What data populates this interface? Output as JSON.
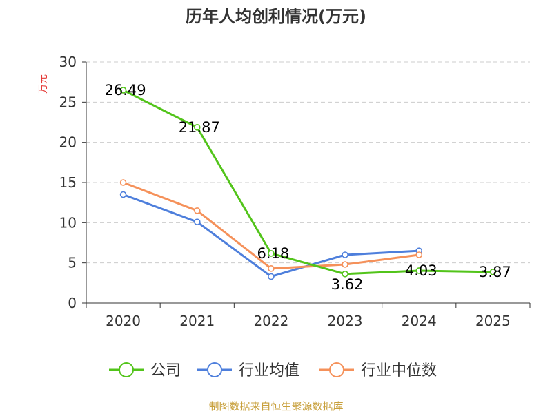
{
  "chart_data": {
    "type": "line",
    "title": "历年人均创利情况(万元)",
    "ylabel": "万元",
    "xlabel": "",
    "ylim": [
      0,
      30
    ],
    "yticks": [
      0,
      5,
      10,
      15,
      20,
      25,
      30
    ],
    "categories": [
      "2020",
      "2021",
      "2022",
      "2023",
      "2024",
      "2025"
    ],
    "grid": true,
    "legend_position": "bottom",
    "series": [
      {
        "name": "公司",
        "color": "#52c41a",
        "values": [
          26.49,
          21.87,
          6.18,
          3.62,
          4.03,
          3.87
        ],
        "labels": [
          "26.49",
          "21.87",
          "6.18",
          "3.62",
          "4.03",
          "3.87"
        ]
      },
      {
        "name": "行业均值",
        "color": "#4e7fdc",
        "values": [
          13.5,
          10.1,
          3.3,
          6.0,
          6.5,
          null
        ]
      },
      {
        "name": "行业中位数",
        "color": "#f5915a",
        "values": [
          15.0,
          11.5,
          4.3,
          4.8,
          6.0,
          null
        ]
      }
    ],
    "source": "制图数据来自恒生聚源数据库",
    "colors": {
      "axis": "#333333",
      "grid": "#cccccc",
      "ylabel": "#e53935",
      "source": "#c8a03c"
    }
  }
}
